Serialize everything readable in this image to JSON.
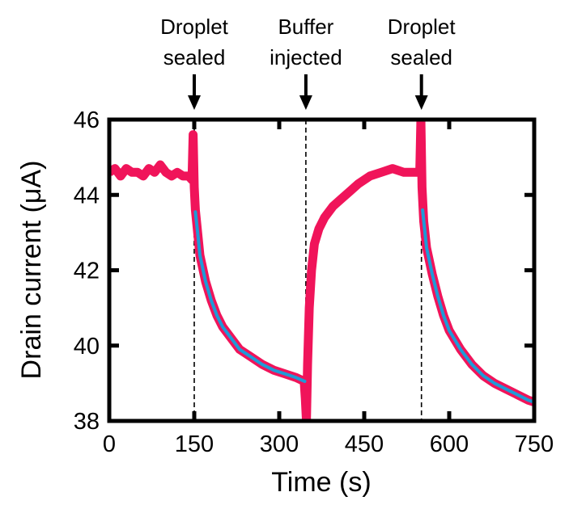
{
  "chart_data": {
    "type": "line",
    "xlabel": "Time (s)",
    "ylabel": "Drain current (μA)",
    "xlim": [
      0,
      750
    ],
    "ylim": [
      38,
      46
    ],
    "xticks": [
      0,
      150,
      300,
      450,
      600,
      750
    ],
    "yticks": [
      38,
      40,
      42,
      44,
      46
    ],
    "grid": false,
    "colors": {
      "data": "#F0145A",
      "fit": "#1E9BD7"
    },
    "events": [
      {
        "x": 150,
        "line1": "Droplet",
        "line2": "sealed"
      },
      {
        "x": 347,
        "line1": "Buffer",
        "line2": "injected"
      },
      {
        "x": 551,
        "line1": "Droplet",
        "line2": "sealed"
      }
    ],
    "series": [
      {
        "role": "data",
        "points": [
          [
            0,
            44.6
          ],
          [
            10,
            44.7
          ],
          [
            20,
            44.5
          ],
          [
            30,
            44.7
          ],
          [
            40,
            44.6
          ],
          [
            50,
            44.6
          ],
          [
            60,
            44.5
          ],
          [
            70,
            44.7
          ],
          [
            80,
            44.6
          ],
          [
            90,
            44.8
          ],
          [
            100,
            44.6
          ],
          [
            110,
            44.5
          ],
          [
            120,
            44.6
          ],
          [
            130,
            44.5
          ],
          [
            140,
            44.5
          ],
          [
            146,
            44.4
          ],
          [
            148,
            45.6
          ],
          [
            150,
            44.2
          ],
          [
            152,
            43.6
          ],
          [
            156,
            43.0
          ],
          [
            160,
            42.4
          ],
          [
            170,
            41.7
          ],
          [
            180,
            41.2
          ],
          [
            190,
            40.8
          ],
          [
            200,
            40.5
          ],
          [
            215,
            40.2
          ],
          [
            230,
            39.9
          ],
          [
            250,
            39.7
          ],
          [
            270,
            39.5
          ],
          [
            290,
            39.35
          ],
          [
            310,
            39.25
          ],
          [
            330,
            39.15
          ],
          [
            344,
            39.05
          ],
          [
            346,
            38.6
          ],
          [
            348,
            38.0
          ],
          [
            350,
            39.5
          ],
          [
            353,
            41.0
          ],
          [
            357,
            42.0
          ],
          [
            362,
            42.7
          ],
          [
            370,
            43.1
          ],
          [
            380,
            43.4
          ],
          [
            395,
            43.7
          ],
          [
            410,
            43.9
          ],
          [
            425,
            44.1
          ],
          [
            440,
            44.3
          ],
          [
            460,
            44.5
          ],
          [
            480,
            44.6
          ],
          [
            500,
            44.7
          ],
          [
            520,
            44.6
          ],
          [
            540,
            44.6
          ],
          [
            548,
            44.6
          ],
          [
            550,
            46.0
          ],
          [
            552,
            44.2
          ],
          [
            555,
            43.3
          ],
          [
            560,
            42.6
          ],
          [
            570,
            41.9
          ],
          [
            580,
            41.3
          ],
          [
            590,
            40.8
          ],
          [
            600,
            40.4
          ],
          [
            620,
            39.9
          ],
          [
            640,
            39.5
          ],
          [
            660,
            39.2
          ],
          [
            680,
            39.0
          ],
          [
            700,
            38.85
          ],
          [
            720,
            38.7
          ],
          [
            740,
            38.55
          ],
          [
            750,
            38.5
          ]
        ]
      },
      {
        "role": "fit",
        "points": [
          [
            152,
            43.55
          ],
          [
            156,
            43.0
          ],
          [
            160,
            42.4
          ],
          [
            170,
            41.7
          ],
          [
            180,
            41.2
          ],
          [
            190,
            40.8
          ],
          [
            200,
            40.5
          ],
          [
            215,
            40.2
          ],
          [
            230,
            39.9
          ],
          [
            250,
            39.7
          ],
          [
            270,
            39.5
          ],
          [
            290,
            39.35
          ],
          [
            310,
            39.25
          ],
          [
            330,
            39.15
          ],
          [
            345,
            39.05
          ]
        ]
      },
      {
        "role": "fit",
        "points": [
          [
            553,
            43.6
          ],
          [
            560,
            42.6
          ],
          [
            570,
            41.9
          ],
          [
            580,
            41.3
          ],
          [
            590,
            40.8
          ],
          [
            600,
            40.4
          ],
          [
            620,
            39.9
          ],
          [
            640,
            39.5
          ],
          [
            660,
            39.2
          ],
          [
            680,
            39.0
          ],
          [
            700,
            38.85
          ],
          [
            720,
            38.7
          ],
          [
            740,
            38.55
          ],
          [
            750,
            38.5
          ]
        ]
      }
    ]
  }
}
